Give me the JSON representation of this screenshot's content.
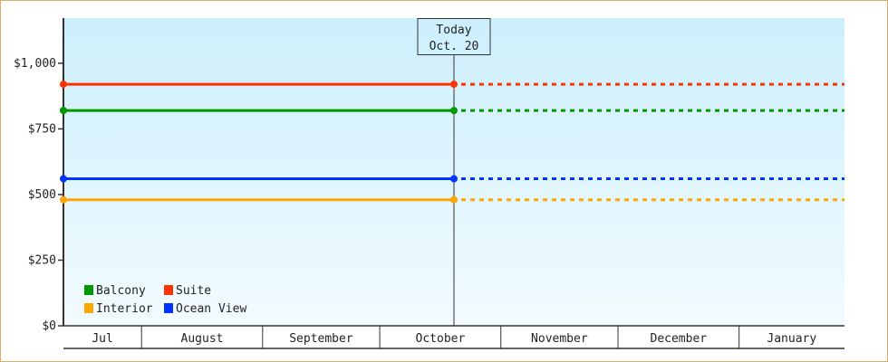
{
  "chart_data": {
    "type": "line",
    "title": "",
    "xlabel": "",
    "ylabel": "",
    "ylim": [
      0,
      1172
    ],
    "y_ticks": [
      "$0",
      "$250",
      "$500",
      "$750",
      "$1,000"
    ],
    "y_tick_values": [
      0,
      250,
      500,
      750,
      1000
    ],
    "x_range": [
      "Jul 12",
      "Jan 28"
    ],
    "months": [
      {
        "label": "Jul",
        "start": "Jul 12",
        "end": "Aug 1"
      },
      {
        "label": "August",
        "start": "Aug 1",
        "end": "Sep 1"
      },
      {
        "label": "September",
        "start": "Sep 1",
        "end": "Oct 1"
      },
      {
        "label": "October",
        "start": "Oct 1",
        "end": "Nov 1"
      },
      {
        "label": "November",
        "start": "Nov 1",
        "end": "Dec 1"
      },
      {
        "label": "December",
        "start": "Dec 1",
        "end": "Jan 1"
      },
      {
        "label": "January",
        "start": "Jan 1",
        "end": "Jan 28"
      }
    ],
    "today": {
      "label": "Today",
      "date_label": "Oct. 20",
      "date": "Oct 20"
    },
    "grid": false,
    "legend_position": "bottom-left",
    "series": [
      {
        "name": "Balcony",
        "color": "#009900",
        "points": [
          {
            "x": "Jul 12",
            "y": 820
          },
          {
            "x": "Oct 20",
            "y": 820
          }
        ],
        "projection": 820
      },
      {
        "name": "Suite",
        "color": "#ff3300",
        "points": [
          {
            "x": "Jul 12",
            "y": 920
          },
          {
            "x": "Oct 20",
            "y": 920
          }
        ],
        "projection": 920
      },
      {
        "name": "Interior",
        "color": "#ffa500",
        "points": [
          {
            "x": "Jul 12",
            "y": 480
          },
          {
            "x": "Oct 20",
            "y": 480
          }
        ],
        "projection": 480
      },
      {
        "name": "Ocean View",
        "color": "#0033ff",
        "points": [
          {
            "x": "Jul 12",
            "y": 560
          },
          {
            "x": "Oct 20",
            "y": 560
          }
        ],
        "projection": 560
      }
    ],
    "background_colors": [
      "#cceffc",
      "#f2fbff"
    ]
  }
}
